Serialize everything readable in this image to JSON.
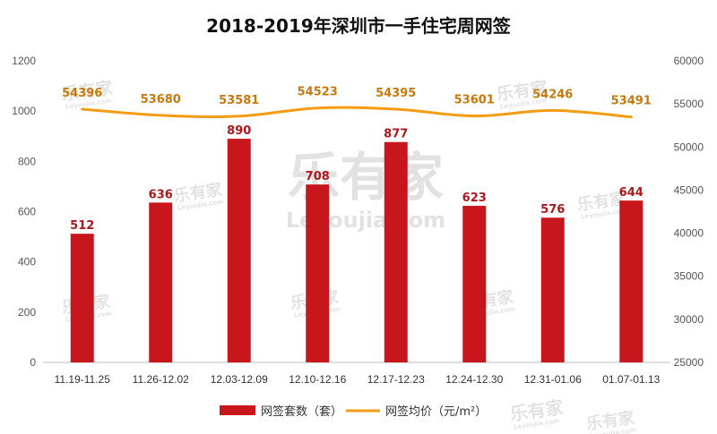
{
  "chart_data": {
    "type": "bar",
    "title": "2018-2019年深圳市一手住宅周网签",
    "categories": [
      "11.19-11.25",
      "11.26-12.02",
      "12.03-12.09",
      "12.10-12.16",
      "12.17-12.23",
      "12.24-12.30",
      "12.31-01.06",
      "01.07-01.13"
    ],
    "series": [
      {
        "name": "网签套数（套）",
        "type": "bar",
        "axis": "left",
        "values": [
          512,
          636,
          890,
          708,
          877,
          623,
          576,
          644
        ]
      },
      {
        "name": "网签均价（元/m²）",
        "type": "line",
        "axis": "right",
        "values": [
          54396,
          53680,
          53581,
          54523,
          54395,
          53601,
          54246,
          53491
        ]
      }
    ],
    "ylim_left": [
      0,
      1200
    ],
    "yticks_left": [
      0,
      200,
      400,
      600,
      800,
      1000,
      1200
    ],
    "ylim_right": [
      25000,
      60000
    ],
    "yticks_right": [
      25000,
      30000,
      35000,
      40000,
      45000,
      50000,
      55000,
      60000
    ],
    "legend_position": "bottom",
    "grid": false,
    "colors": {
      "bar": "#c8161d",
      "line": "#f39c12",
      "bar_label": "#b0161b",
      "line_label": "#c67a0d"
    }
  },
  "watermark": {
    "brand": "乐有家",
    "site": "Leyoujia.com"
  }
}
